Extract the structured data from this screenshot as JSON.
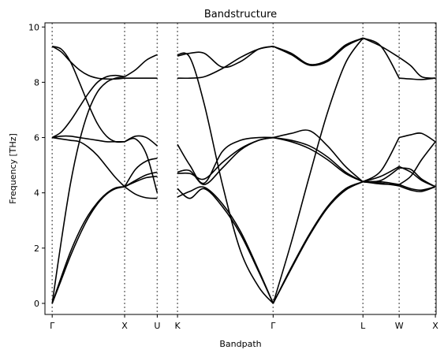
{
  "chart_data": {
    "type": "line",
    "title": "Bandstructure",
    "xlabel": "Bandpath",
    "ylabel": "Frequency [THz]",
    "ylim": [
      -0.4,
      10.15
    ],
    "xlim": [
      -0.1,
      5.3
    ],
    "yticks": [
      0,
      2,
      4,
      6,
      8,
      10
    ],
    "xticks": [
      {
        "x": 0.0,
        "label": "Γ"
      },
      {
        "x": 1.0,
        "label": "X"
      },
      {
        "x": 1.45,
        "label": "U"
      },
      {
        "x": 1.73,
        "label": "K"
      },
      {
        "x": 3.05,
        "label": "Γ"
      },
      {
        "x": 4.29,
        "label": "L"
      },
      {
        "x": 4.79,
        "label": "W"
      },
      {
        "x": 5.29,
        "label": "X"
      }
    ],
    "vlines": [
      0.0,
      1.0,
      1.45,
      1.73,
      3.05,
      4.29,
      4.79,
      5.29
    ],
    "grid": false,
    "line_color": "#000000",
    "vline_color": "#777777",
    "segments": [
      {
        "x": [
          0.0,
          0.125,
          0.25,
          0.375,
          0.5,
          0.625,
          0.75,
          0.875,
          1.0
        ],
        "bands": [
          [
            0.0,
            0.95,
            1.85,
            2.6,
            3.2,
            3.65,
            3.98,
            4.18,
            4.22
          ],
          [
            0.0,
            0.85,
            1.7,
            2.45,
            3.1,
            3.6,
            3.95,
            4.15,
            4.22
          ],
          [
            0.0,
            2.25,
            4.3,
            5.85,
            6.95,
            7.65,
            8.0,
            8.15,
            8.2
          ],
          [
            6.0,
            6.05,
            6.05,
            6.0,
            5.95,
            5.9,
            5.85,
            5.85,
            5.85
          ],
          [
            6.0,
            5.95,
            5.9,
            5.85,
            5.65,
            5.35,
            4.95,
            4.55,
            4.22
          ],
          [
            6.0,
            6.2,
            6.6,
            7.1,
            7.6,
            8.0,
            8.2,
            8.25,
            8.2
          ],
          [
            9.3,
            9.2,
            8.75,
            8.0,
            7.2,
            6.5,
            6.05,
            5.85,
            5.85
          ],
          [
            9.3,
            9.1,
            8.75,
            8.45,
            8.25,
            8.15,
            8.12,
            8.12,
            8.15
          ]
        ]
      },
      {
        "x": [
          1.0,
          1.15,
          1.3,
          1.45
        ],
        "bands": [
          [
            4.22,
            4.45,
            4.65,
            4.75
          ],
          [
            4.22,
            4.4,
            4.55,
            4.6
          ],
          [
            4.22,
            3.95,
            3.82,
            3.8
          ],
          [
            5.85,
            5.95,
            5.4,
            4.0
          ],
          [
            5.85,
            6.05,
            6.0,
            5.7
          ],
          [
            4.22,
            4.85,
            5.15,
            5.25
          ],
          [
            8.15,
            8.15,
            8.15,
            8.15
          ],
          [
            8.2,
            8.45,
            8.8,
            9.0
          ]
        ]
      },
      {
        "x": [
          1.73,
          1.9,
          2.1,
          2.35,
          2.6,
          2.85,
          3.05
        ],
        "bands": [
          [
            3.85,
            4.05,
            4.2,
            3.6,
            2.6,
            1.2,
            0.0
          ],
          [
            4.15,
            3.8,
            4.15,
            3.5,
            2.5,
            1.15,
            0.0
          ],
          [
            9.0,
            8.9,
            7.2,
            4.3,
            1.9,
            0.6,
            0.0
          ],
          [
            4.7,
            4.7,
            4.5,
            5.1,
            5.6,
            5.9,
            6.0
          ],
          [
            4.75,
            4.8,
            4.3,
            4.9,
            5.55,
            5.9,
            6.0
          ],
          [
            5.75,
            5.0,
            4.35,
            5.5,
            5.9,
            6.0,
            6.0
          ],
          [
            8.15,
            8.15,
            8.2,
            8.5,
            8.9,
            9.2,
            9.3
          ],
          [
            8.95,
            9.05,
            9.05,
            8.55,
            8.75,
            9.2,
            9.3
          ]
        ]
      },
      {
        "x": [
          3.05,
          3.3,
          3.55,
          3.8,
          4.05,
          4.29
        ],
        "bands": [
          [
            0.0,
            1.3,
            2.5,
            3.5,
            4.15,
            4.4
          ],
          [
            0.0,
            1.25,
            2.45,
            3.45,
            4.1,
            4.4
          ],
          [
            0.0,
            2.2,
            4.6,
            6.9,
            8.7,
            9.6
          ],
          [
            6.0,
            5.9,
            5.7,
            5.3,
            4.75,
            4.4
          ],
          [
            6.0,
            5.85,
            5.6,
            5.2,
            4.7,
            4.4
          ],
          [
            6.0,
            6.15,
            6.25,
            5.7,
            4.95,
            4.4
          ],
          [
            9.3,
            9.05,
            8.65,
            8.8,
            9.35,
            9.6
          ],
          [
            9.3,
            9.0,
            8.62,
            8.75,
            9.3,
            9.6
          ]
        ]
      },
      {
        "x": [
          4.29,
          4.54,
          4.79
        ],
        "bands": [
          [
            4.4,
            4.35,
            4.25
          ],
          [
            4.4,
            4.32,
            4.3
          ],
          [
            4.4,
            4.6,
            4.95
          ],
          [
            4.4,
            4.8,
            6.0
          ],
          [
            4.4,
            4.4,
            4.3
          ],
          [
            4.4,
            4.45,
            4.9
          ],
          [
            9.6,
            9.3,
            8.9
          ],
          [
            9.6,
            9.3,
            8.15
          ]
        ]
      },
      {
        "x": [
          4.79,
          4.95,
          5.1,
          5.29
        ],
        "bands": [
          [
            4.25,
            4.1,
            4.05,
            4.22
          ],
          [
            4.3,
            4.15,
            4.1,
            4.22
          ],
          [
            4.95,
            4.75,
            4.45,
            4.22
          ],
          [
            6.0,
            6.1,
            6.15,
            5.85
          ],
          [
            4.3,
            4.6,
            5.2,
            5.85
          ],
          [
            4.9,
            4.85,
            4.5,
            4.22
          ],
          [
            8.9,
            8.6,
            8.2,
            8.15
          ],
          [
            8.15,
            8.12,
            8.1,
            8.15
          ]
        ]
      }
    ]
  }
}
